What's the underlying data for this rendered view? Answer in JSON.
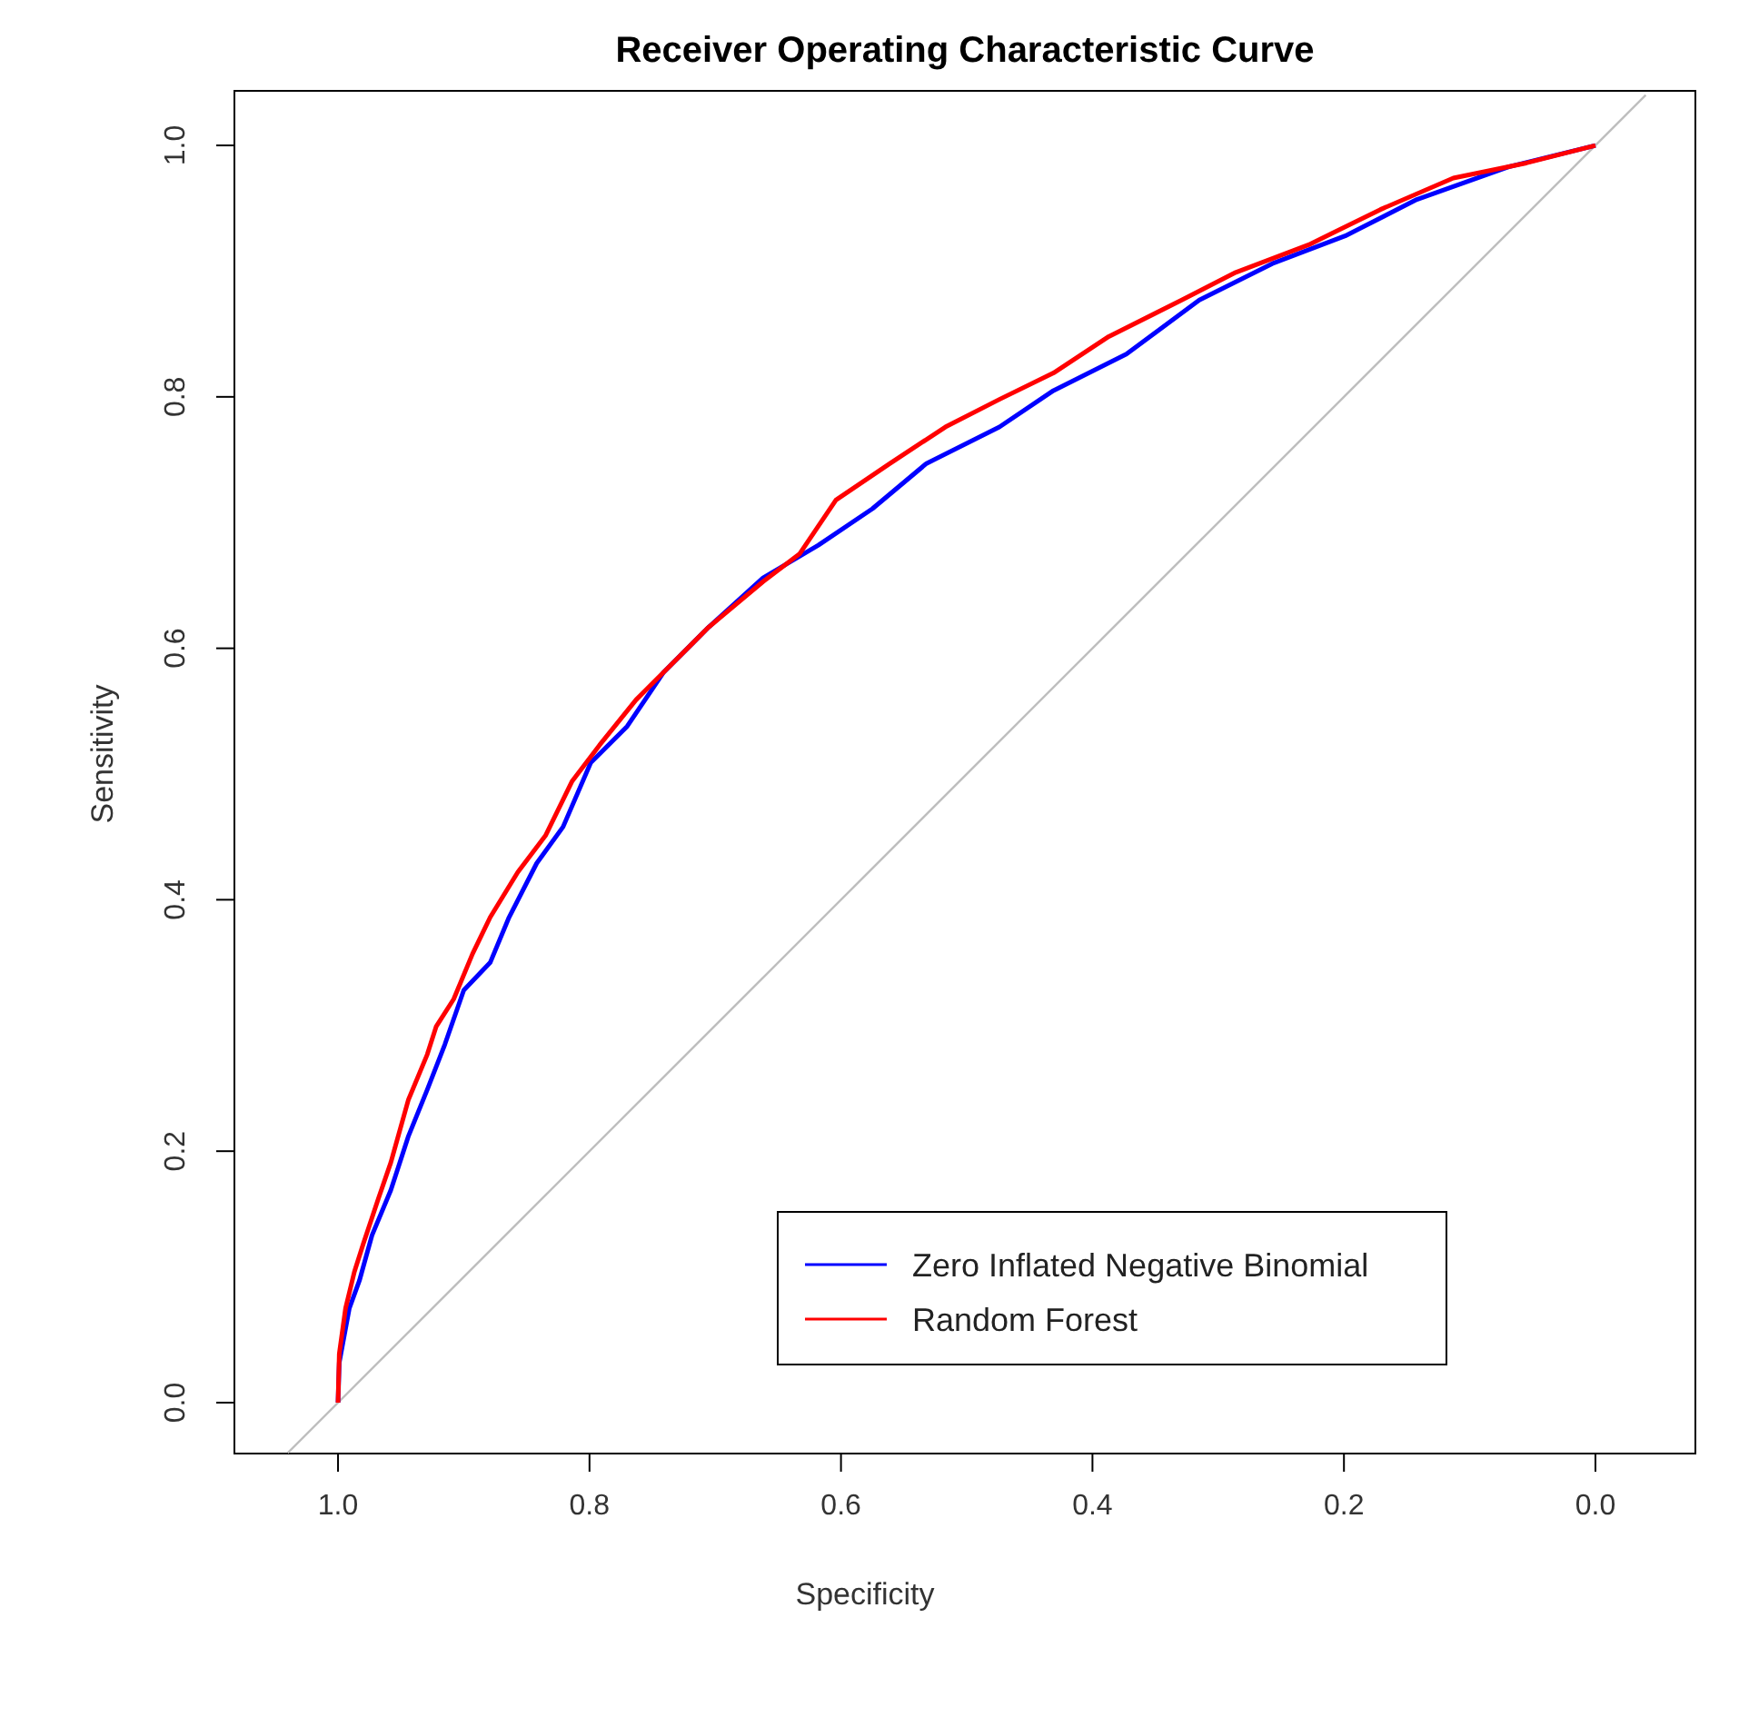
{
  "chart_data": {
    "type": "line",
    "title": "Receiver Operating Characteristic Curve",
    "xlabel": "Specificity",
    "ylabel": "Sensitivity",
    "xlim": [
      1.0824,
      -0.0795
    ],
    "ylim": [
      -0.0405,
      1.0434
    ],
    "xticks": [
      {
        "value": 1,
        "label": "1.0"
      },
      {
        "value": 0.8,
        "label": "0.8"
      },
      {
        "value": 0.6,
        "label": "0.6"
      },
      {
        "value": 0.4,
        "label": "0.4"
      },
      {
        "value": 0.2,
        "label": "0.2"
      },
      {
        "value": 0,
        "label": "0.0"
      }
    ],
    "yticks": [
      {
        "value": 0,
        "label": "0.0"
      },
      {
        "value": 0.2,
        "label": "0.2"
      },
      {
        "value": 0.4,
        "label": "0.4"
      },
      {
        "value": 0.6,
        "label": "0.6"
      },
      {
        "value": 0.8,
        "label": "0.8"
      },
      {
        "value": 1,
        "label": "1.0"
      }
    ],
    "grid": false,
    "legend": "bottom right",
    "line_style": "solid",
    "marker": "none",
    "series": [
      {
        "color": "#bebebe",
        "x": [
          1.04,
          -0.04
        ],
        "values": [
          -0.04,
          1.04
        ]
      },
      {
        "name": "Zero Inflated Negative Binomial",
        "color": "#0000ff",
        "x": [
          1,
          0.999,
          0.991,
          0.983,
          0.973,
          0.958,
          0.944,
          0.929,
          0.915,
          0.9,
          0.879,
          0.864,
          0.842,
          0.821,
          0.799,
          0.77,
          0.741,
          0.705,
          0.662,
          0.618,
          0.575,
          0.532,
          0.474,
          0.431,
          0.373,
          0.315,
          0.257,
          0.199,
          0.142,
          0.069,
          0
        ],
        "values": [
          0,
          0.032,
          0.075,
          0.097,
          0.133,
          0.169,
          0.212,
          0.249,
          0.285,
          0.328,
          0.35,
          0.386,
          0.429,
          0.458,
          0.509,
          0.538,
          0.581,
          0.617,
          0.656,
          0.682,
          0.711,
          0.747,
          0.776,
          0.805,
          0.834,
          0.877,
          0.906,
          0.928,
          0.957,
          0.983,
          1
        ]
      },
      {
        "name": "Random Forest",
        "color": "#ff0000",
        "x": [
          1,
          0.999,
          0.994,
          0.987,
          0.98,
          0.968,
          0.958,
          0.944,
          0.929,
          0.922,
          0.908,
          0.893,
          0.879,
          0.857,
          0.835,
          0.814,
          0.792,
          0.763,
          0.734,
          0.705,
          0.662,
          0.633,
          0.604,
          0.561,
          0.517,
          0.474,
          0.431,
          0.387,
          0.329,
          0.286,
          0.228,
          0.171,
          0.113,
          0.055,
          0
        ],
        "values": [
          0,
          0.039,
          0.075,
          0.104,
          0.126,
          0.162,
          0.191,
          0.241,
          0.277,
          0.299,
          0.321,
          0.357,
          0.386,
          0.422,
          0.451,
          0.494,
          0.523,
          0.559,
          0.588,
          0.617,
          0.653,
          0.675,
          0.718,
          0.747,
          0.776,
          0.798,
          0.819,
          0.848,
          0.877,
          0.899,
          0.921,
          0.949,
          0.974,
          0.986,
          1
        ]
      }
    ]
  }
}
